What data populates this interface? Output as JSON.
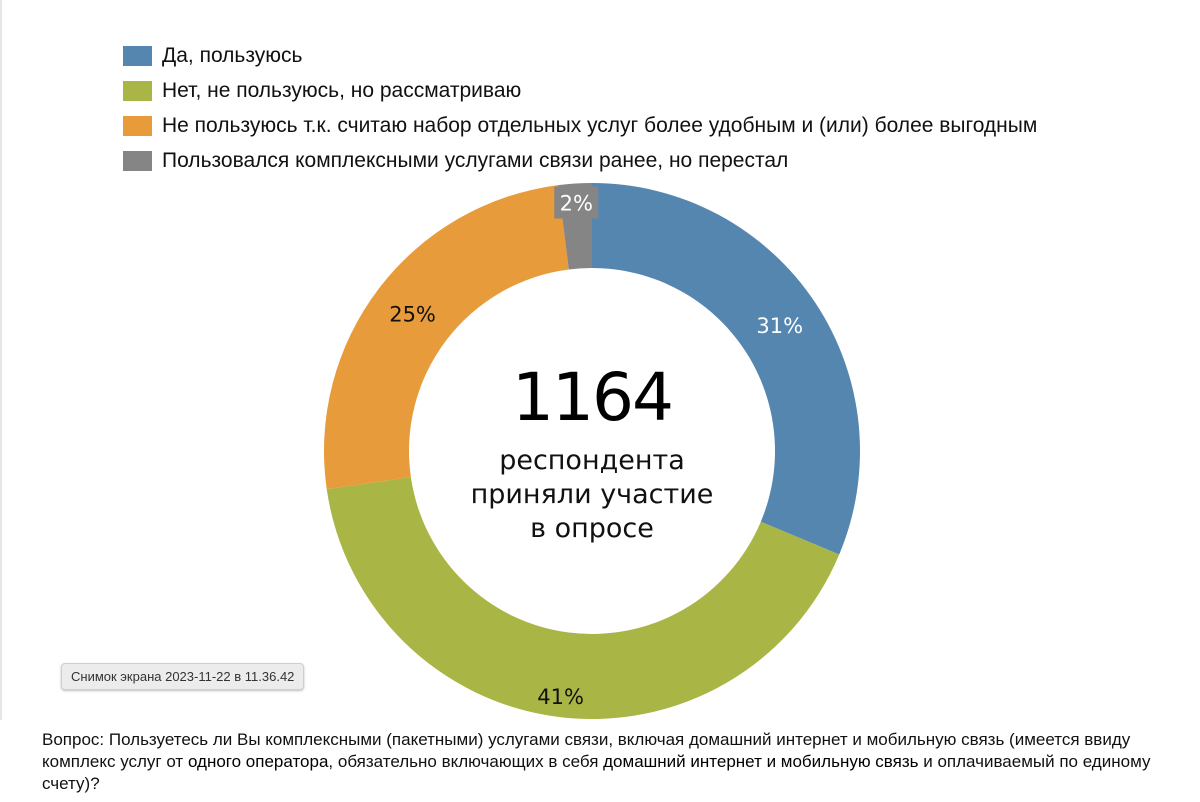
{
  "legend": [
    {
      "label": "Да, пользуюсь",
      "color": "#5586b0"
    },
    {
      "label": "Нет, не пользуюсь, но рассматриваю",
      "color": "#a9b545"
    },
    {
      "label": "Не пользуюсь т.к. считаю набор отдельных услуг более удобным и (или) более выгодным",
      "color": "#e89b3a"
    },
    {
      "label": "Пользовался комплексными услугами связи ранее, но перестал",
      "color": "#858585"
    }
  ],
  "center": {
    "number": "1164",
    "lines": [
      "респондента",
      "приняли участие",
      "в опросе"
    ]
  },
  "screenshot_badge": "Снимок экрана 2023-11-22 в 11.36.42",
  "question": {
    "part1": "Вопрос: Пользуетесь ли Вы комплексными (пакетными) услугами связи, включая домашний интернет и мобильную связь (имеется ввиду комплекс услуг от ",
    "emph1": "одного оператора",
    "part2": ", обязательно включающих в себя ",
    "emph2": "домашний интернет и мобильную связь",
    "part3": " и оплачиваемый по единому счету)?"
  },
  "chart_data": {
    "type": "pie",
    "categories": [
      "Да, пользуюсь",
      "Нет, не пользуюсь, но рассматриваю",
      "Не пользуюсь т.к. считаю набор отдельных услуг более удобным и (или) более выгодным",
      "Пользовался комплексными услугами связи ранее, но перестал"
    ],
    "values": [
      31,
      41,
      25,
      2
    ],
    "labels": [
      "31%",
      "41%",
      "25%",
      "2%"
    ],
    "colors": [
      "#5586b0",
      "#a9b545",
      "#e89b3a",
      "#858585"
    ],
    "label_colors": [
      "#ffffff",
      "#111111",
      "#111111",
      "#ffffff"
    ],
    "donut": true,
    "start": "top, clockwise"
  }
}
